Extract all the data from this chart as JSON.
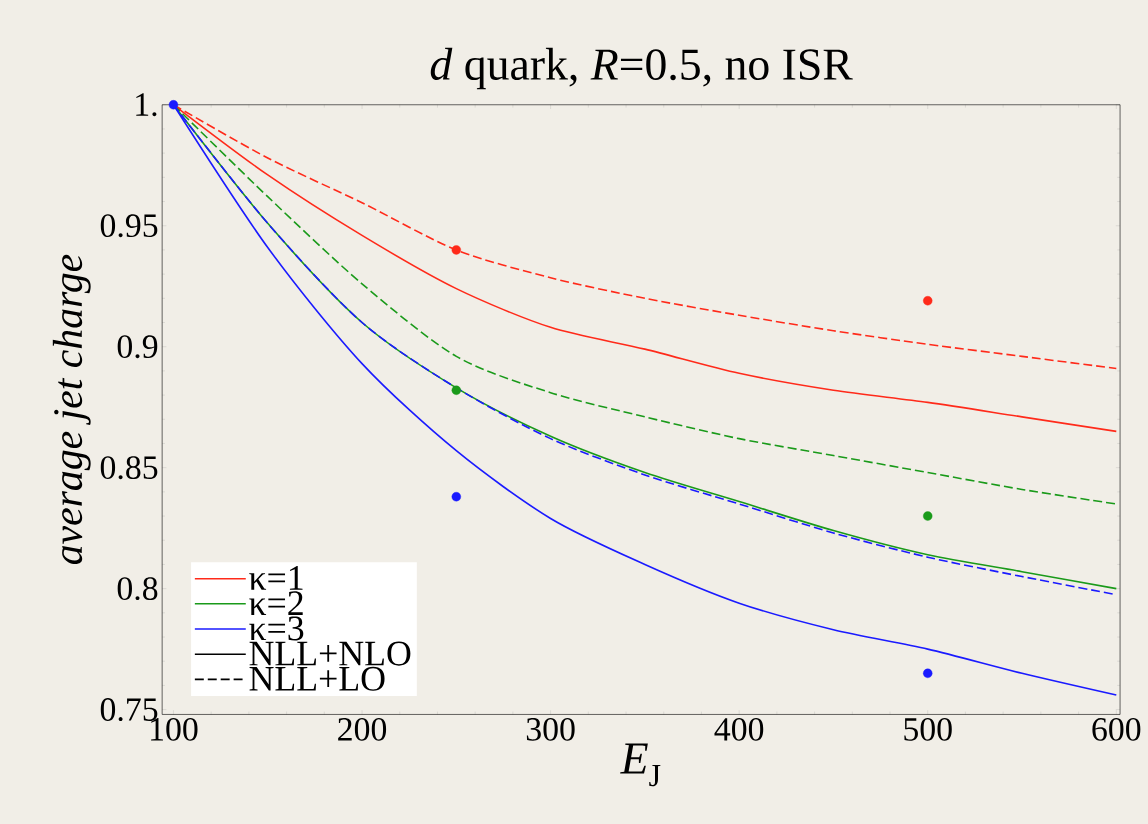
{
  "chart_data": {
    "type": "line",
    "title": "*d* quark, *R*=0.5, no ISR",
    "xlabel": "*E*$_{J}$",
    "ylabel": "average jet charge",
    "xlim": [
      94,
      602
    ],
    "ylim": [
      0.748,
      1.0
    ],
    "xticks": [
      100,
      200,
      300,
      400,
      500,
      600
    ],
    "yticks": [
      0.75,
      0.8,
      0.85,
      0.9,
      0.95,
      {
        "value": 1,
        "label": "1."
      }
    ],
    "legend": "bottom left",
    "grid": false,
    "x": [
      100,
      150,
      200,
      250,
      300,
      350,
      400,
      450,
      500,
      550,
      600
    ],
    "series": [
      {
        "name": "κ=1",
        "color": "#ff2a1a",
        "line_style": "solid",
        "values": [
          1.0,
          0.971,
          0.946,
          0.924,
          0.908,
          0.899,
          0.889,
          0.882,
          0.877,
          0.871,
          0.865
        ]
      },
      {
        "name": "κ=2",
        "color": "#1a9a1a",
        "line_style": "solid",
        "values": [
          1.0,
          0.951,
          0.91,
          0.883,
          0.863,
          0.848,
          0.836,
          0.824,
          0.814,
          0.807,
          0.8
        ]
      },
      {
        "name": "κ=3",
        "color": "#1a1aff",
        "line_style": "solid",
        "values": [
          1.0,
          0.941,
          0.893,
          0.857,
          0.829,
          0.81,
          0.794,
          0.783,
          0.775,
          0.765,
          0.756
        ]
      },
      {
        "name": "NLL+NLO",
        "color": "#000000",
        "line_style": "solid",
        "values": [
          null,
          null,
          null,
          null,
          null,
          null,
          null,
          null,
          null,
          null,
          null
        ]
      },
      {
        "name": "NLL+LO",
        "color": "#000000",
        "line_style": "dashed",
        "values": [
          null,
          null,
          null,
          null,
          null,
          null,
          null,
          null,
          null,
          null,
          null
        ]
      },
      {
        "color": "#ff2a1a",
        "line_style": "dashed",
        "values": [
          1.0,
          0.978,
          0.9595,
          0.94,
          0.9285,
          0.92,
          0.913,
          0.9066,
          0.901,
          0.896,
          0.891
        ]
      },
      {
        "color": "#1a9a1a",
        "line_style": "dashed",
        "values": [
          1.0,
          0.962,
          0.926,
          0.896,
          0.881,
          0.871,
          0.862,
          0.855,
          0.848,
          0.841,
          0.835
        ]
      },
      {
        "color": "#1a1aff",
        "line_style": "dashed",
        "values": [
          1.0,
          0.951,
          0.91,
          0.883,
          0.862,
          0.847,
          0.835,
          0.823,
          0.813,
          0.805,
          0.7975
        ]
      },
      {
        "type": "scatter",
        "color": "#ff2a1a",
        "x": [
          250,
          500
        ],
        "values": [
          0.94,
          0.919
        ]
      },
      {
        "type": "scatter",
        "color": "#1a9a1a",
        "x": [
          250,
          500
        ],
        "values": [
          0.882,
          0.83
        ]
      },
      {
        "type": "scatter",
        "color": "#1a1aff",
        "x": [
          100,
          250,
          500
        ],
        "values": [
          1.0,
          0.838,
          0.765
        ]
      }
    ]
  }
}
